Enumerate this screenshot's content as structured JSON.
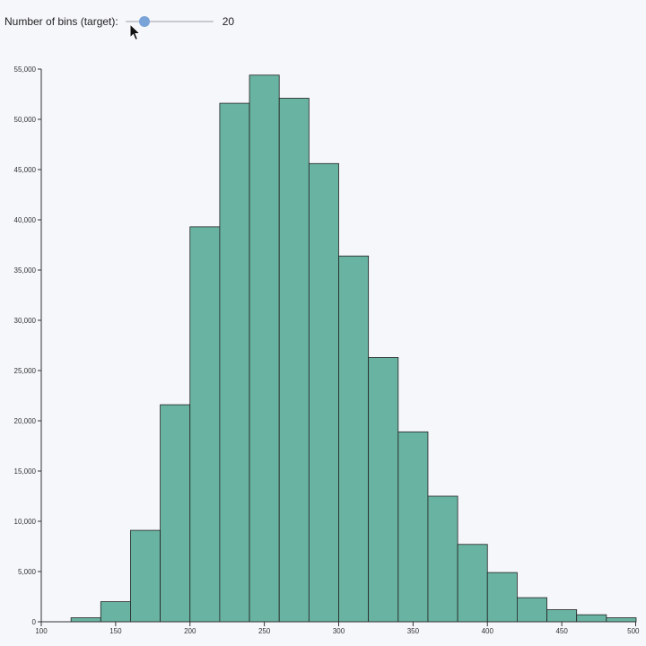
{
  "controls": {
    "label": "Number of bins (target):",
    "value": "20",
    "slider_min": 1,
    "slider_max": 100,
    "slider_value": 20,
    "thumb_color": "#7aa3d8"
  },
  "colors": {
    "bar_fill": "#69b3a2",
    "bar_stroke": "#222222",
    "axis": "#333333"
  },
  "chart_data": {
    "type": "bar",
    "title": "",
    "xlabel": "",
    "ylabel": "",
    "xlim": [
      100,
      500
    ],
    "ylim": [
      0,
      55000
    ],
    "grid": false,
    "x_ticks": [
      100,
      150,
      200,
      250,
      300,
      350,
      400,
      450,
      500
    ],
    "y_ticks": [
      0,
      5000,
      10000,
      15000,
      20000,
      25000,
      30000,
      35000,
      40000,
      45000,
      50000,
      55000
    ],
    "x_tick_labels": [
      "100",
      "150",
      "200",
      "250",
      "300",
      "350",
      "400",
      "450",
      "500"
    ],
    "y_tick_labels": [
      "0",
      "5,000",
      "10,000",
      "15,000",
      "20,000",
      "25,000",
      "30,000",
      "35,000",
      "40,000",
      "45,000",
      "50,000",
      "55,000"
    ],
    "bins": [
      {
        "x0": 120,
        "x1": 140,
        "value": 400
      },
      {
        "x0": 140,
        "x1": 160,
        "value": 2000
      },
      {
        "x0": 160,
        "x1": 180,
        "value": 9100
      },
      {
        "x0": 180,
        "x1": 200,
        "value": 21600
      },
      {
        "x0": 200,
        "x1": 220,
        "value": 39300
      },
      {
        "x0": 220,
        "x1": 240,
        "value": 51600
      },
      {
        "x0": 240,
        "x1": 260,
        "value": 54400
      },
      {
        "x0": 260,
        "x1": 280,
        "value": 52100
      },
      {
        "x0": 280,
        "x1": 300,
        "value": 45600
      },
      {
        "x0": 300,
        "x1": 320,
        "value": 36400
      },
      {
        "x0": 320,
        "x1": 340,
        "value": 26300
      },
      {
        "x0": 340,
        "x1": 360,
        "value": 18900
      },
      {
        "x0": 360,
        "x1": 380,
        "value": 12500
      },
      {
        "x0": 380,
        "x1": 400,
        "value": 7700
      },
      {
        "x0": 400,
        "x1": 420,
        "value": 4900
      },
      {
        "x0": 420,
        "x1": 440,
        "value": 2400
      },
      {
        "x0": 440,
        "x1": 460,
        "value": 1200
      },
      {
        "x0": 460,
        "x1": 480,
        "value": 700
      },
      {
        "x0": 480,
        "x1": 500,
        "value": 400
      }
    ]
  }
}
